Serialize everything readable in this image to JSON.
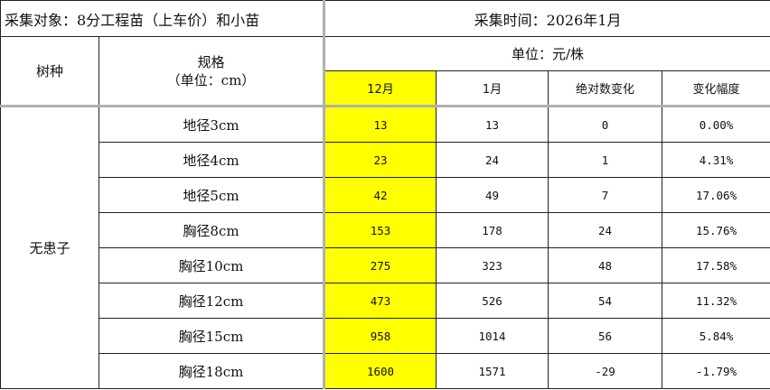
{
  "title_left": "采集对象：8分工程苗（上车价）和小苗",
  "title_right": "采集时间：2026年1月",
  "header": {
    "species_col": "树种",
    "spec_col_line1": "规格",
    "spec_col_line2": "（单位：cm）",
    "unit_label": "单位：元/株",
    "col_dec": "12月",
    "col_jan": "1月",
    "col_abs": "绝对数变化",
    "col_pct": "变化幅度"
  },
  "species": "无患子",
  "rows": [
    {
      "spec": "地径3cm",
      "dec": "13",
      "jan": "13",
      "abs": "0",
      "pct": "0.00%"
    },
    {
      "spec": "地径4cm",
      "dec": "23",
      "jan": "24",
      "abs": "1",
      "pct": "4.31%"
    },
    {
      "spec": "地径5cm",
      "dec": "42",
      "jan": "49",
      "abs": "7",
      "pct": "17.06%"
    },
    {
      "spec": "胸径8cm",
      "dec": "153",
      "jan": "178",
      "abs": "24",
      "pct": "15.76%"
    },
    {
      "spec": "胸径10cm",
      "dec": "275",
      "jan": "323",
      "abs": "48",
      "pct": "17.58%"
    },
    {
      "spec": "胸径12cm",
      "dec": "473",
      "jan": "526",
      "abs": "54",
      "pct": "11.32%"
    },
    {
      "spec": "胸径15cm",
      "dec": "958",
      "jan": "1014",
      "abs": "56",
      "pct": "5.84%"
    },
    {
      "spec": "胸径18cm",
      "dec": "1600",
      "jan": "1571",
      "abs": "-29",
      "pct": "-1.79%"
    }
  ],
  "colors": {
    "highlight": "#ffff00",
    "grid": "#222222",
    "freeze_line": "#b0b0b0"
  }
}
